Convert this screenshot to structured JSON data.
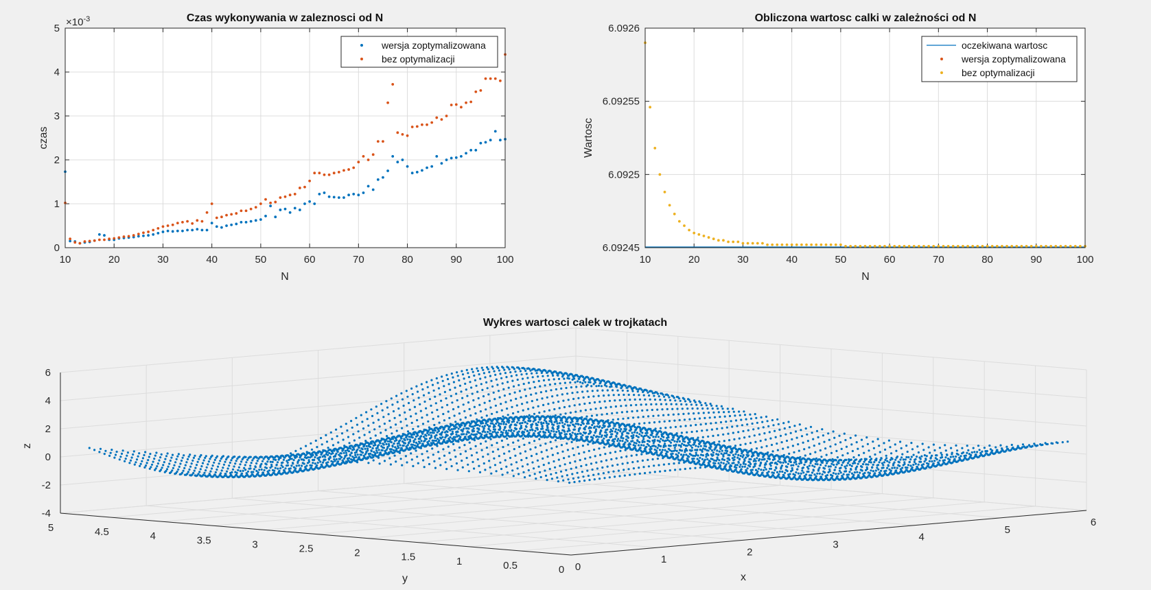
{
  "colors": {
    "blue": "#0072BD",
    "orange": "#D95319",
    "yellow": "#EDB120",
    "grid": "#dcdcdc",
    "axis": "#262626",
    "background": "#f0f0f0",
    "axes_background": "#ffffff"
  },
  "chart_data": [
    {
      "type": "scatter",
      "title": "Czas wykonywania w zaleznosci od N",
      "xlabel": "N",
      "ylabel": "czas",
      "xlim": [
        10,
        100
      ],
      "ylim": [
        0,
        5
      ],
      "y_exponent_label": "×10",
      "y_exponent": "-3",
      "x_ticks": [
        "10",
        "20",
        "30",
        "40",
        "50",
        "60",
        "70",
        "80",
        "90",
        "100"
      ],
      "y_ticks": [
        "0",
        "1",
        "2",
        "3",
        "4",
        "5"
      ],
      "grid": true,
      "legend_position": "top-right",
      "legend": [
        "wersja zoptymalizowana",
        "bez optymalizacji"
      ],
      "series": [
        {
          "name": "wersja zoptymalizowana",
          "color": "#0072BD",
          "x": [
            10,
            11,
            12,
            13,
            14,
            15,
            16,
            17,
            18,
            19,
            20,
            21,
            22,
            23,
            24,
            25,
            26,
            27,
            28,
            29,
            30,
            31,
            32,
            33,
            34,
            35,
            36,
            37,
            38,
            39,
            40,
            41,
            42,
            43,
            44,
            45,
            46,
            47,
            48,
            49,
            50,
            51,
            52,
            53,
            54,
            55,
            56,
            57,
            58,
            59,
            60,
            61,
            62,
            63,
            64,
            65,
            66,
            67,
            68,
            69,
            70,
            71,
            72,
            73,
            74,
            75,
            76,
            77,
            78,
            79,
            80,
            81,
            82,
            83,
            84,
            85,
            86,
            87,
            88,
            89,
            90,
            91,
            92,
            93,
            94,
            95,
            96,
            97,
            98,
            99,
            100
          ],
          "values": [
            1.73,
            0.15,
            0.14,
            0.1,
            0.12,
            0.13,
            0.16,
            0.3,
            0.28,
            0.18,
            0.18,
            0.21,
            0.22,
            0.23,
            0.24,
            0.26,
            0.27,
            0.28,
            0.3,
            0.33,
            0.36,
            0.38,
            0.37,
            0.38,
            0.38,
            0.4,
            0.4,
            0.42,
            0.4,
            0.4,
            0.56,
            0.48,
            0.46,
            0.5,
            0.52,
            0.54,
            0.58,
            0.58,
            0.6,
            0.62,
            0.64,
            0.72,
            0.95,
            0.7,
            0.86,
            0.88,
            0.8,
            0.9,
            0.86,
            1.0,
            1.05,
            1.0,
            1.22,
            1.25,
            1.16,
            1.15,
            1.14,
            1.14,
            1.2,
            1.22,
            1.2,
            1.25,
            1.4,
            1.32,
            1.55,
            1.6,
            1.75,
            2.08,
            1.95,
            2.0,
            1.85,
            1.7,
            1.72,
            1.76,
            1.82,
            1.85,
            2.08,
            1.92,
            2.0,
            2.04,
            2.05,
            2.08,
            2.15,
            2.22,
            2.22,
            2.38,
            2.4,
            2.45,
            2.65,
            2.45,
            2.47
          ]
        },
        {
          "name": "bez optymalizacji",
          "color": "#D95319",
          "x": [
            10,
            11,
            12,
            13,
            14,
            15,
            16,
            17,
            18,
            19,
            20,
            21,
            22,
            23,
            24,
            25,
            26,
            27,
            28,
            29,
            30,
            31,
            32,
            33,
            34,
            35,
            36,
            37,
            38,
            39,
            40,
            41,
            42,
            43,
            44,
            45,
            46,
            47,
            48,
            49,
            50,
            51,
            52,
            53,
            54,
            55,
            56,
            57,
            58,
            59,
            60,
            61,
            62,
            63,
            64,
            65,
            66,
            67,
            68,
            69,
            70,
            71,
            72,
            73,
            74,
            75,
            76,
            77,
            78,
            79,
            80,
            81,
            82,
            83,
            84,
            85,
            86,
            87,
            88,
            89,
            90,
            91,
            92,
            93,
            94,
            95,
            96,
            97,
            98,
            99,
            100
          ],
          "values": [
            1.02,
            0.2,
            0.12,
            0.1,
            0.14,
            0.15,
            0.16,
            0.18,
            0.18,
            0.2,
            0.21,
            0.23,
            0.25,
            0.26,
            0.28,
            0.31,
            0.34,
            0.36,
            0.4,
            0.44,
            0.48,
            0.5,
            0.52,
            0.56,
            0.58,
            0.6,
            0.55,
            0.62,
            0.6,
            0.8,
            1.0,
            0.68,
            0.7,
            0.74,
            0.76,
            0.78,
            0.84,
            0.84,
            0.88,
            0.92,
            1.0,
            1.1,
            1.02,
            1.04,
            1.14,
            1.16,
            1.2,
            1.22,
            1.36,
            1.38,
            1.52,
            1.7,
            1.7,
            1.66,
            1.66,
            1.7,
            1.72,
            1.76,
            1.78,
            1.82,
            1.95,
            2.08,
            2.0,
            2.12,
            2.42,
            2.42,
            3.3,
            3.72,
            2.62,
            2.58,
            2.55,
            2.75,
            2.76,
            2.8,
            2.8,
            2.85,
            2.96,
            2.92,
            3.0,
            3.25,
            3.26,
            3.2,
            3.3,
            3.32,
            3.55,
            3.58,
            3.85,
            3.85,
            3.85,
            3.8,
            4.4
          ]
        }
      ]
    },
    {
      "type": "line",
      "title": "Obliczona wartosc calki w zależności od N",
      "xlabel": "N",
      "ylabel": "Wartosc",
      "xlim": [
        10,
        100
      ],
      "ylim": [
        6.09245,
        6.0926
      ],
      "x_ticks": [
        "10",
        "20",
        "30",
        "40",
        "50",
        "60",
        "70",
        "80",
        "90",
        "100"
      ],
      "y_ticks": [
        "6.09245",
        "6.0925",
        "6.09255",
        "6.0926"
      ],
      "grid": true,
      "legend_position": "top-right",
      "legend": [
        "oczekiwana wartosc",
        "wersja zoptymalizowana",
        "bez optymalizacji"
      ],
      "series": [
        {
          "name": "oczekiwana wartosc",
          "color": "#0072BD",
          "x": [
            10,
            100
          ],
          "values": [
            6.09245,
            6.09245
          ]
        },
        {
          "name": "wersja zoptymalizowana",
          "color": "#D95319",
          "note": "overlaps bez optymalizacji",
          "formula_points": "same as bez optymalizacji"
        },
        {
          "name": "bez optymalizacji",
          "color": "#EDB120",
          "x": [
            10,
            11,
            12,
            13,
            14,
            15,
            16,
            17,
            18,
            19,
            20,
            21,
            22,
            23,
            24,
            25,
            26,
            27,
            28,
            29,
            30,
            31,
            32,
            33,
            34,
            35,
            36,
            37,
            38,
            39,
            40,
            41,
            42,
            43,
            44,
            45,
            46,
            47,
            48,
            49,
            50,
            51,
            52,
            53,
            54,
            55,
            56,
            57,
            58,
            59,
            60,
            61,
            62,
            63,
            64,
            65,
            66,
            67,
            68,
            69,
            70,
            71,
            72,
            73,
            74,
            75,
            76,
            77,
            78,
            79,
            80,
            81,
            82,
            83,
            84,
            85,
            86,
            87,
            88,
            89,
            90,
            91,
            92,
            93,
            94,
            95,
            96,
            97,
            98,
            99,
            100
          ],
          "values": [
            6.09259,
            6.092546,
            6.092518,
            6.0925,
            6.092488,
            6.092479,
            6.092473,
            6.092468,
            6.092465,
            6.092462,
            6.09246,
            6.092459,
            6.092458,
            6.092457,
            6.092456,
            6.092455,
            6.092455,
            6.092454,
            6.092454,
            6.092454,
            6.092453,
            6.092453,
            6.092453,
            6.092453,
            6.092453,
            6.092452,
            6.092452,
            6.092452,
            6.092452,
            6.092452,
            6.092452,
            6.092452,
            6.092452,
            6.092452,
            6.092452,
            6.092452,
            6.092452,
            6.092452,
            6.092452,
            6.092452,
            6.092452,
            6.092451,
            6.092451,
            6.092451,
            6.092451,
            6.092451,
            6.092451,
            6.092451,
            6.092451,
            6.092451,
            6.092451,
            6.092451,
            6.092451,
            6.092451,
            6.092451,
            6.092451,
            6.092451,
            6.092451,
            6.092451,
            6.092451,
            6.092451,
            6.092451,
            6.092451,
            6.092451,
            6.092451,
            6.092451,
            6.092451,
            6.092451,
            6.092451,
            6.092451,
            6.092451,
            6.092451,
            6.092451,
            6.092451,
            6.092451,
            6.092451,
            6.092451,
            6.092451,
            6.092451,
            6.092451,
            6.092451,
            6.092451,
            6.092451,
            6.092451,
            6.092451,
            6.092451,
            6.092451,
            6.092451,
            6.092451,
            6.092451,
            6.092451
          ]
        }
      ]
    },
    {
      "type": "scatter",
      "title": "Wykres wartosci calek w trojkatach",
      "xlabel": "x",
      "ylabel": "y",
      "zlabel": "z",
      "xlim": [
        0,
        6
      ],
      "ylim": [
        0,
        5
      ],
      "zlim": [
        -4,
        6
      ],
      "x_ticks": [
        "0",
        "1",
        "2",
        "3",
        "4",
        "5",
        "6"
      ],
      "y_ticks": [
        "0",
        "0.5",
        "1",
        "1.5",
        "2",
        "2.5",
        "3",
        "3.5",
        "4",
        "4.5",
        "5"
      ],
      "z_ticks": [
        "-4",
        "-2",
        "0",
        "2",
        "4",
        "6"
      ],
      "grid": true,
      "surface_formula": "z = 3·sin(x)·sin(y) + 1 (sampled on triangular grid)",
      "grid_samples": {
        "x_count": 100,
        "y_count": 44
      },
      "color": "#0072BD"
    }
  ]
}
